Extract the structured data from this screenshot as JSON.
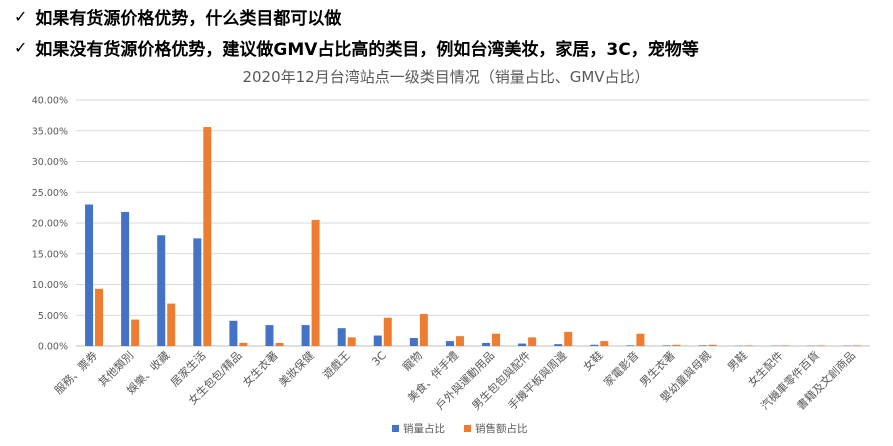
{
  "bullets": [
    {
      "icon": "checkmark-icon",
      "text": "如果有货源价格优势，什么类目都可以做"
    },
    {
      "icon": "checkmark-icon",
      "text": "如果没有货源价格优势，建议做GMV占比高的类目，例如台湾美妆，家居，3C，宠物等"
    }
  ],
  "chart_data": {
    "type": "bar",
    "title": "2020年12月台湾站点一级类目情况（销量占比、GMV占比）",
    "xlabel": "",
    "ylabel": "",
    "ylim": [
      0,
      40
    ],
    "yticks": [
      "0.00%",
      "5.00%",
      "10.00%",
      "15.00%",
      "20.00%",
      "25.00%",
      "30.00%",
      "35.00%",
      "40.00%"
    ],
    "grid": true,
    "legend_position": "bottom",
    "categories": [
      "服務、票券",
      "其他類別",
      "娛樂、收藏",
      "居家生活",
      "女生包包/精品",
      "女生衣著",
      "美妝保健",
      "遊戲王",
      "3C",
      "寵物",
      "美食、伴手禮",
      "戶外與運動用品",
      "男生包包與配件",
      "手機平板與周邊",
      "女鞋",
      "家電影音",
      "男生衣著",
      "嬰幼童與母親",
      "男鞋",
      "女生配件",
      "汽機車零件百貨",
      "書籍及文創商品"
    ],
    "series": [
      {
        "name": "销量占比",
        "color": "#4472C4",
        "values": [
          23.0,
          21.8,
          18.0,
          17.5,
          4.1,
          3.4,
          3.4,
          2.9,
          1.7,
          1.3,
          0.8,
          0.5,
          0.4,
          0.3,
          0.2,
          0.1,
          0.1,
          0.1,
          0.05,
          0.05,
          0.05,
          0.05
        ]
      },
      {
        "name": "销售额占比",
        "color": "#ED7D31",
        "values": [
          9.3,
          4.3,
          6.9,
          35.6,
          0.5,
          0.5,
          20.5,
          1.4,
          4.6,
          5.2,
          1.6,
          2.0,
          1.4,
          2.3,
          0.8,
          2.0,
          0.2,
          0.2,
          0.1,
          0.1,
          0.1,
          0.1
        ]
      }
    ]
  }
}
